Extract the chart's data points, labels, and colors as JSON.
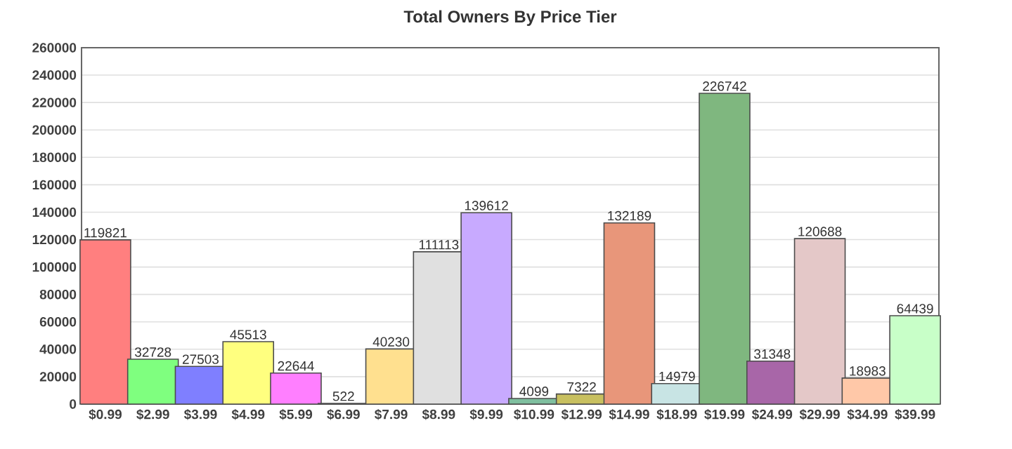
{
  "chart_data": {
    "type": "bar",
    "title": "Total Owners By Price Tier",
    "categories": [
      "$0.99",
      "$2.99",
      "$3.99",
      "$4.99",
      "$5.99",
      "$6.99",
      "$7.99",
      "$8.99",
      "$9.99",
      "$10.99",
      "$12.99",
      "$14.99",
      "$18.99",
      "$19.99",
      "$24.99",
      "$29.99",
      "$34.99",
      "$39.99"
    ],
    "values": [
      119821,
      32728,
      27503,
      45513,
      22644,
      522,
      40230,
      111113,
      139612,
      4099,
      7322,
      132189,
      14979,
      226742,
      31348,
      120688,
      18983,
      64439
    ],
    "colors": [
      "#ff7f7f",
      "#7fff7f",
      "#7f7fff",
      "#ffff7f",
      "#ff7fff",
      "#555555",
      "#ffe08f",
      "#e0e0e0",
      "#c8aaff",
      "#7fbf9f",
      "#c8c060",
      "#e8967a",
      "#c8e4e4",
      "#7fb77f",
      "#a866a8",
      "#e4c8c8",
      "#ffc8a8",
      "#c8ffc8"
    ],
    "ylim": [
      0,
      260000
    ],
    "yticks": [
      0,
      20000,
      40000,
      60000,
      80000,
      100000,
      120000,
      140000,
      160000,
      180000,
      200000,
      220000,
      240000,
      260000
    ],
    "grid": "y",
    "data_labels": true
  }
}
